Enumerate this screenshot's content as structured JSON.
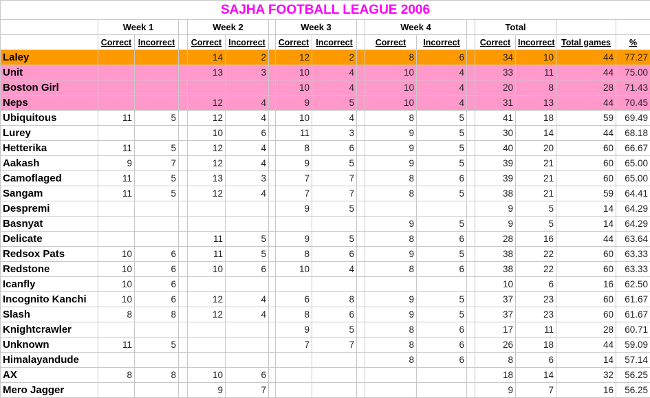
{
  "title": "SAJHA FOOTBALL LEAGUE 2006",
  "colors": {
    "title": "#ff00ff",
    "leader_row": "#ff9900",
    "top_rows": "#ff99cc"
  },
  "groups": [
    "Week 1",
    "Week 2",
    "Week 3",
    "Week 4",
    "Total"
  ],
  "subheaders": {
    "correct": "Correct",
    "incorrect": "Incorrect",
    "total_games": "Total games",
    "percent": "%"
  },
  "highlight": [
    "leader_row",
    "top_rows",
    "top_rows",
    "top_rows"
  ],
  "rows": [
    {
      "name": "Laley",
      "v": [
        "",
        "",
        14,
        2,
        12,
        2,
        8,
        6,
        34,
        10,
        44,
        "77.27"
      ]
    },
    {
      "name": "Unit",
      "v": [
        "",
        "",
        13,
        3,
        10,
        4,
        10,
        4,
        33,
        11,
        44,
        "75.00"
      ]
    },
    {
      "name": "Boston Girl",
      "v": [
        "",
        "",
        "",
        "",
        10,
        4,
        10,
        4,
        20,
        8,
        28,
        "71.43"
      ]
    },
    {
      "name": "Neps",
      "v": [
        "",
        "",
        12,
        4,
        9,
        5,
        10,
        4,
        31,
        13,
        44,
        "70.45"
      ]
    },
    {
      "name": "Ubiquitous",
      "v": [
        11,
        5,
        12,
        4,
        10,
        4,
        8,
        5,
        41,
        18,
        59,
        "69.49"
      ]
    },
    {
      "name": "Lurey",
      "v": [
        "",
        "",
        10,
        6,
        11,
        3,
        9,
        5,
        30,
        14,
        44,
        "68.18"
      ]
    },
    {
      "name": "Hetterika",
      "v": [
        11,
        5,
        12,
        4,
        8,
        6,
        9,
        5,
        40,
        20,
        60,
        "66.67"
      ]
    },
    {
      "name": "Aakash",
      "v": [
        9,
        7,
        12,
        4,
        9,
        5,
        9,
        5,
        39,
        21,
        60,
        "65.00"
      ]
    },
    {
      "name": "Camoflaged",
      "v": [
        11,
        5,
        13,
        3,
        7,
        7,
        8,
        6,
        39,
        21,
        60,
        "65.00"
      ]
    },
    {
      "name": "Sangam",
      "v": [
        11,
        5,
        12,
        4,
        7,
        7,
        8,
        5,
        38,
        21,
        59,
        "64.41"
      ]
    },
    {
      "name": "Despremi",
      "v": [
        "",
        "",
        "",
        "",
        9,
        5,
        "",
        "",
        9,
        5,
        14,
        "64.29"
      ]
    },
    {
      "name": "Basnyat",
      "v": [
        "",
        "",
        "",
        "",
        "",
        "",
        9,
        5,
        9,
        5,
        14,
        "64.29"
      ]
    },
    {
      "name": "Delicate",
      "v": [
        "",
        "",
        11,
        5,
        9,
        5,
        8,
        6,
        28,
        16,
        44,
        "63.64"
      ]
    },
    {
      "name": "Redsox Pats",
      "v": [
        10,
        6,
        11,
        5,
        8,
        6,
        9,
        5,
        38,
        22,
        60,
        "63.33"
      ]
    },
    {
      "name": "Redstone",
      "v": [
        10,
        6,
        10,
        6,
        10,
        4,
        8,
        6,
        38,
        22,
        60,
        "63.33"
      ]
    },
    {
      "name": "Icanfly",
      "v": [
        10,
        6,
        "",
        "",
        "",
        "",
        "",
        "",
        10,
        6,
        16,
        "62.50"
      ]
    },
    {
      "name": "Incognito Kanchi",
      "v": [
        10,
        6,
        12,
        4,
        6,
        8,
        9,
        5,
        37,
        23,
        60,
        "61.67"
      ]
    },
    {
      "name": "Slash",
      "v": [
        8,
        8,
        12,
        4,
        8,
        6,
        9,
        5,
        37,
        23,
        60,
        "61.67"
      ]
    },
    {
      "name": "Knightcrawler",
      "v": [
        "",
        "",
        "",
        "",
        9,
        5,
        8,
        6,
        17,
        11,
        28,
        "60.71"
      ]
    },
    {
      "name": "Unknown",
      "v": [
        11,
        5,
        "",
        "",
        7,
        7,
        8,
        6,
        26,
        18,
        44,
        "59.09"
      ]
    },
    {
      "name": "Himalayandude",
      "v": [
        "",
        "",
        "",
        "",
        "",
        "",
        8,
        6,
        8,
        6,
        14,
        "57.14"
      ]
    },
    {
      "name": "AX",
      "v": [
        8,
        8,
        10,
        6,
        "",
        "",
        "",
        "",
        18,
        14,
        32,
        "56.25"
      ]
    },
    {
      "name": "Mero Jagger",
      "v": [
        "",
        "",
        9,
        7,
        "",
        "",
        "",
        "",
        9,
        7,
        16,
        "56.25"
      ]
    }
  ]
}
